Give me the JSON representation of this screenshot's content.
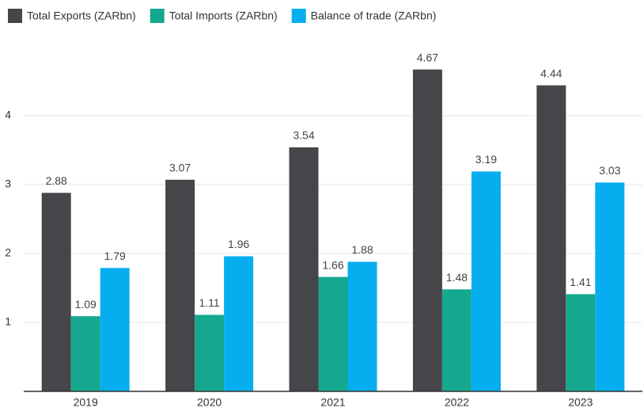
{
  "chart_data": {
    "type": "bar",
    "categories": [
      "2019",
      "2020",
      "2021",
      "2022",
      "2023"
    ],
    "series": [
      {
        "name": "Total Exports (ZARbn)",
        "color": "#46464a",
        "values": [
          2.88,
          3.07,
          3.54,
          4.67,
          4.44
        ]
      },
      {
        "name": "Total Imports (ZARbn)",
        "color": "#16a88f",
        "values": [
          1.09,
          1.11,
          1.66,
          1.48,
          1.41
        ]
      },
      {
        "name": "Balance of trade (ZARbn)",
        "color": "#06aeef",
        "values": [
          1.79,
          1.96,
          1.88,
          3.19,
          3.03
        ]
      }
    ],
    "ylim": [
      0,
      5
    ],
    "yticks": [
      1,
      2,
      3,
      4
    ],
    "grid": true,
    "legend": "top-left"
  }
}
